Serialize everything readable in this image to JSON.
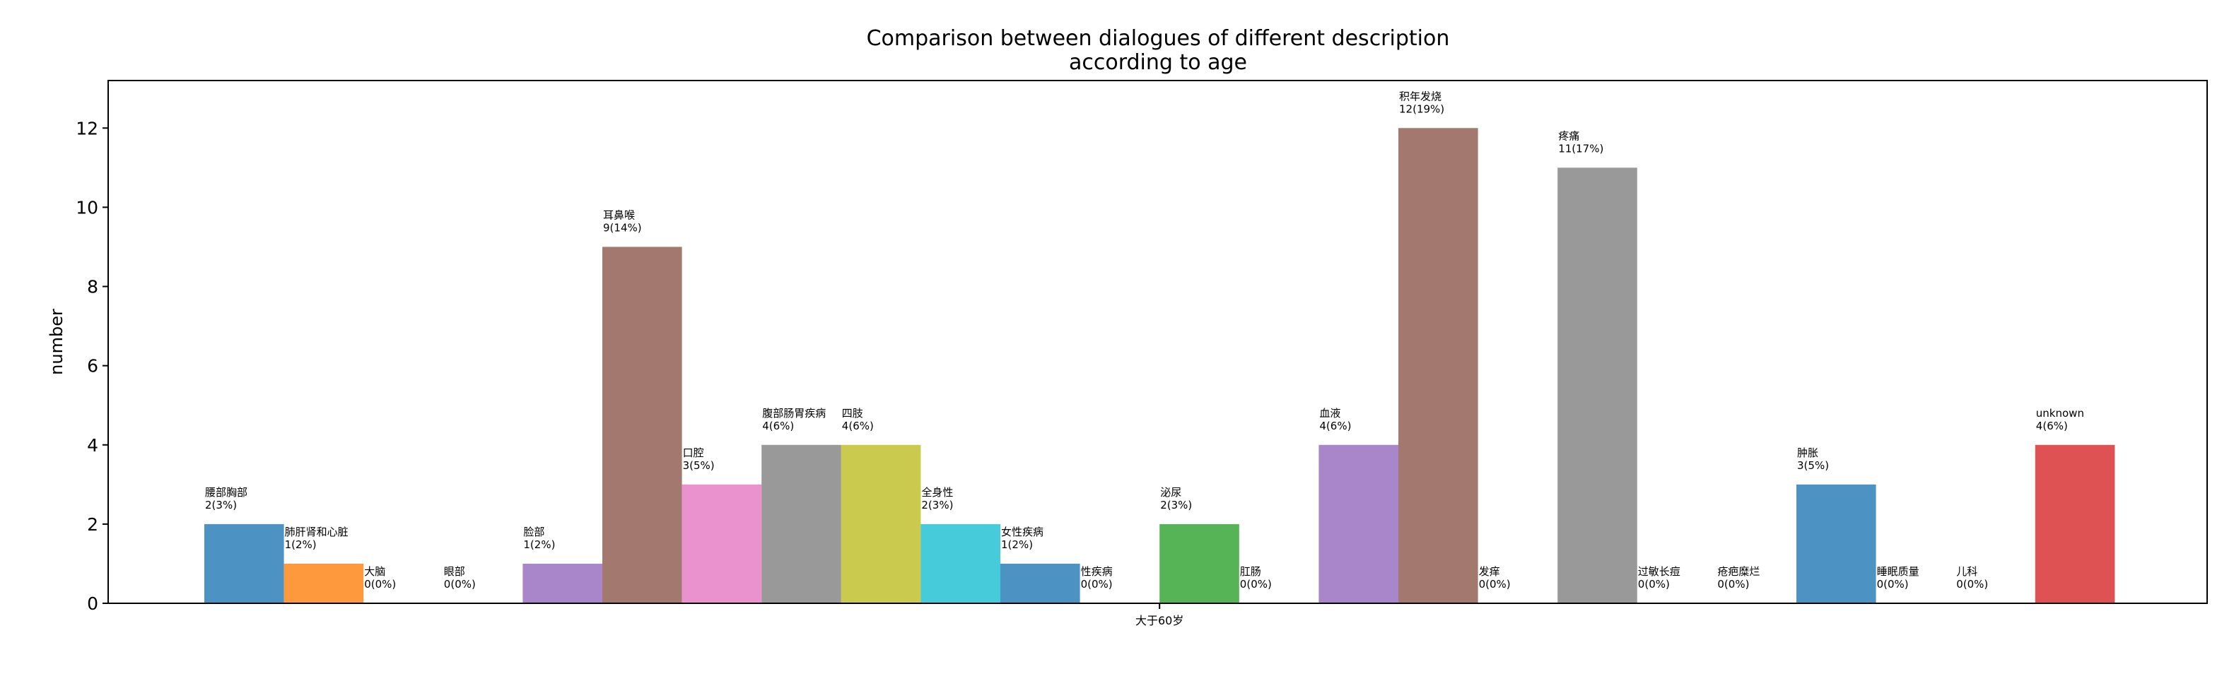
{
  "chart_data": {
    "type": "bar",
    "title": "Comparison between dialogues of different description\naccording to age",
    "ylabel": "number",
    "xlabel": "",
    "categories": [
      "大于60岁"
    ],
    "ylim": [
      0,
      13.2
    ],
    "yticks": [
      0,
      2,
      4,
      6,
      8,
      10,
      12
    ],
    "grid": false,
    "legend": "none",
    "bars": [
      {
        "label": "腰部胸部",
        "value": 2,
        "pct": "3%",
        "color": "#1f77b4"
      },
      {
        "label": "肺肝肾和心脏",
        "value": 1,
        "pct": "2%",
        "color": "#ff7f0e"
      },
      {
        "label": "大脑",
        "value": 0,
        "pct": "0%",
        "color": "#2ca02c"
      },
      {
        "label": "眼部",
        "value": 0,
        "pct": "0%",
        "color": "#d62728"
      },
      {
        "label": "脸部",
        "value": 1,
        "pct": "2%",
        "color": "#9467bd"
      },
      {
        "label": "耳鼻喉",
        "value": 9,
        "pct": "14%",
        "color": "#8c564b"
      },
      {
        "label": "口腔",
        "value": 3,
        "pct": "5%",
        "color": "#e377c2"
      },
      {
        "label": "腹部肠胃疾病",
        "value": 4,
        "pct": "6%",
        "color": "#7f7f7f"
      },
      {
        "label": "四肢",
        "value": 4,
        "pct": "6%",
        "color": "#bcbd22"
      },
      {
        "label": "全身性",
        "value": 2,
        "pct": "3%",
        "color": "#17becf"
      },
      {
        "label": "女性疾病",
        "value": 1,
        "pct": "2%",
        "color": "#1f77b4"
      },
      {
        "label": "性疾病",
        "value": 0,
        "pct": "0%",
        "color": "#ff7f0e"
      },
      {
        "label": "泌尿",
        "value": 2,
        "pct": "3%",
        "color": "#2ca02c"
      },
      {
        "label": "肛肠",
        "value": 0,
        "pct": "0%",
        "color": "#d62728"
      },
      {
        "label": "血液",
        "value": 4,
        "pct": "6%",
        "color": "#9467bd"
      },
      {
        "label": "积年发烧",
        "value": 12,
        "pct": "19%",
        "color": "#8c564b"
      },
      {
        "label": "发痒",
        "value": 0,
        "pct": "0%",
        "color": "#e377c2"
      },
      {
        "label": "疼痛",
        "value": 11,
        "pct": "17%",
        "color": "#7f7f7f"
      },
      {
        "label": "过敏长痘",
        "value": 0,
        "pct": "0%",
        "color": "#bcbd22"
      },
      {
        "label": "疮疤糜烂",
        "value": 0,
        "pct": "0%",
        "color": "#17becf"
      },
      {
        "label": "肿胀",
        "value": 3,
        "pct": "5%",
        "color": "#1f77b4"
      },
      {
        "label": "睡眠质量",
        "value": 0,
        "pct": "0%",
        "color": "#ff7f0e"
      },
      {
        "label": "儿科",
        "value": 0,
        "pct": "0%",
        "color": "#2ca02c"
      },
      {
        "label": "unknown",
        "value": 4,
        "pct": "6%",
        "color": "#d62728"
      }
    ]
  }
}
